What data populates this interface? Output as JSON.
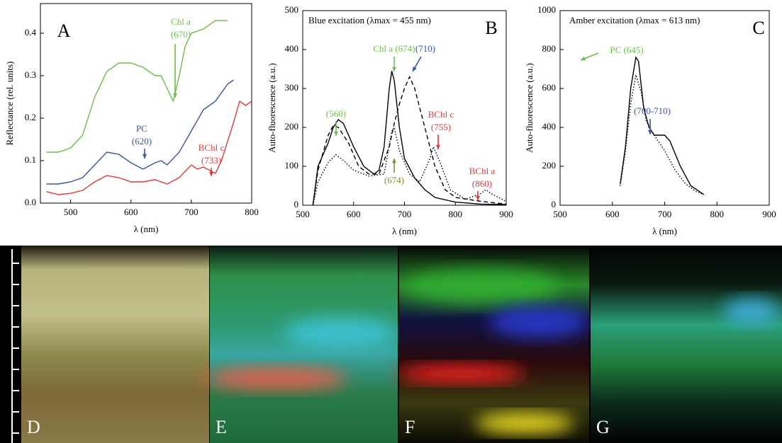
{
  "chart_data": [
    {
      "type": "line",
      "panel": "A",
      "xlabel": "λ (nm)",
      "ylabel": "Reflectance (rel. units)",
      "xlim": [
        450,
        800
      ],
      "xticks": [
        500,
        600,
        700,
        800
      ],
      "ylim": [
        0,
        0.47
      ],
      "yticks": [
        {
          "value": 0,
          "label": "0.0"
        },
        0.1,
        0.2,
        0.3,
        0.4
      ],
      "series": [
        {
          "color": "#6cbf4a",
          "dash": "solid",
          "x": [
            460,
            480,
            500,
            520,
            540,
            560,
            580,
            600,
            620,
            640,
            650,
            660,
            670,
            680,
            690,
            700,
            720,
            740,
            760
          ],
          "values": [
            0.12,
            0.12,
            0.13,
            0.16,
            0.25,
            0.31,
            0.33,
            0.33,
            0.32,
            0.3,
            0.3,
            0.27,
            0.24,
            0.3,
            0.37,
            0.4,
            0.41,
            0.43,
            0.43
          ]
        },
        {
          "color": "#3a55a4",
          "dash": "solid",
          "x": [
            460,
            480,
            500,
            520,
            540,
            560,
            580,
            600,
            620,
            640,
            650,
            660,
            680,
            700,
            720,
            740,
            760,
            770
          ],
          "values": [
            0.045,
            0.045,
            0.05,
            0.06,
            0.09,
            0.12,
            0.115,
            0.095,
            0.08,
            0.095,
            0.1,
            0.09,
            0.12,
            0.17,
            0.22,
            0.24,
            0.28,
            0.29
          ]
        },
        {
          "color": "#e03a3a",
          "dash": "solid",
          "x": [
            460,
            480,
            500,
            520,
            540,
            560,
            580,
            600,
            620,
            640,
            660,
            680,
            700,
            710,
            720,
            740,
            750,
            770,
            780,
            790,
            800
          ],
          "values": [
            0.027,
            0.02,
            0.023,
            0.03,
            0.05,
            0.065,
            0.06,
            0.05,
            0.05,
            0.055,
            0.045,
            0.06,
            0.09,
            0.08,
            0.085,
            0.07,
            0.1,
            0.19,
            0.24,
            0.23,
            0.24
          ]
        }
      ],
      "annotations": [
        {
          "lines": [
            "Chl a",
            "(670)"
          ],
          "color": "#6cbf4a"
        },
        {
          "lines": [
            "PC",
            "(620)"
          ],
          "color": "#3a55a4"
        },
        {
          "lines": [
            "BChl c",
            "(733)"
          ],
          "color": "#e03a3a"
        }
      ]
    },
    {
      "type": "line",
      "panel": "B",
      "title": "Blue excitation (λmax = 455 nm)",
      "xlabel": "λ (nm)",
      "ylabel": "Auto-fluorescence (a.u.)",
      "xlim": [
        500,
        900
      ],
      "xticks": [
        500,
        600,
        700,
        800,
        900
      ],
      "ylim": [
        0,
        500
      ],
      "yticks": [
        0,
        100,
        200,
        300,
        400,
        500
      ],
      "series": [
        {
          "color": "#000000",
          "dash": "solid",
          "x": [
            520,
            530,
            540,
            550,
            560,
            570,
            580,
            600,
            620,
            640,
            650,
            660,
            670,
            675,
            680,
            690,
            700,
            720,
            740,
            760,
            800,
            850,
            900
          ],
          "values": [
            0,
            100,
            130,
            160,
            200,
            220,
            210,
            150,
            100,
            80,
            90,
            150,
            300,
            345,
            320,
            200,
            120,
            70,
            40,
            20,
            8,
            3,
            2
          ]
        },
        {
          "color": "#000000",
          "dash": "dashed",
          "x": [
            520,
            530,
            550,
            560,
            570,
            590,
            610,
            630,
            650,
            670,
            680,
            690,
            700,
            710,
            720,
            740,
            760,
            780,
            800,
            850,
            900
          ],
          "values": [
            0,
            90,
            180,
            205,
            200,
            160,
            100,
            80,
            80,
            150,
            210,
            260,
            300,
            330,
            300,
            200,
            100,
            40,
            20,
            10,
            3
          ]
        },
        {
          "color": "#000000",
          "dash": "dotted",
          "x": [
            520,
            530,
            550,
            565,
            580,
            600,
            630,
            660,
            675,
            680,
            690,
            710,
            730,
            750,
            757,
            770,
            790,
            820,
            850,
            860,
            870,
            900
          ],
          "values": [
            0,
            60,
            110,
            130,
            115,
            90,
            75,
            80,
            190,
            200,
            140,
            80,
            60,
            120,
            150,
            110,
            40,
            15,
            30,
            40,
            30,
            10
          ]
        }
      ],
      "annotations": [
        {
          "lines": [
            "(560)"
          ],
          "color": "#6cbf4a"
        },
        {
          "lines": [
            "Chl a (674)"
          ],
          "color": "#6cbf4a"
        },
        {
          "lines": [
            "(710)"
          ],
          "color": "#3a55a4"
        },
        {
          "lines": [
            "BChl c",
            "(755)"
          ],
          "color": "#e03a3a"
        },
        {
          "lines": [
            "BChl a",
            "(860)"
          ],
          "color": "#e03a3a"
        },
        {
          "lines": [
            "(674)"
          ],
          "color": "#8a8a2a"
        }
      ]
    },
    {
      "type": "line",
      "panel": "C",
      "title": "Amber excitation (λmax = 613 nm)",
      "xlabel": "λ (nm)",
      "ylabel": "Auto-fluorescence (a.u.)",
      "xlim": [
        500,
        900
      ],
      "xticks": [
        500,
        600,
        700,
        800,
        900
      ],
      "ylim": [
        0,
        1000
      ],
      "yticks": [
        0,
        200,
        400,
        600,
        800,
        1000
      ],
      "series": [
        {
          "color": "#000000",
          "dash": "solid",
          "x": [
            615,
            625,
            635,
            645,
            650,
            660,
            670,
            680,
            700,
            710,
            730,
            750,
            775
          ],
          "values": [
            110,
            300,
            600,
            760,
            740,
            500,
            400,
            360,
            360,
            330,
            200,
            100,
            55
          ]
        },
        {
          "color": "#000000",
          "dash": "dotted",
          "x": [
            615,
            625,
            635,
            645,
            655,
            665,
            680,
            700,
            720,
            740,
            760,
            775
          ],
          "values": [
            100,
            280,
            520,
            670,
            580,
            430,
            360,
            280,
            180,
            110,
            70,
            55
          ]
        }
      ],
      "annotations": [
        {
          "lines": [
            "PC (645)"
          ],
          "color": "#6cbf4a"
        },
        {
          "lines": [
            "(700-710)"
          ],
          "color": "#3a55a4"
        }
      ]
    }
  ],
  "image_panels": [
    {
      "label": "D"
    },
    {
      "label": "E"
    },
    {
      "label": "F"
    },
    {
      "label": "G"
    }
  ]
}
